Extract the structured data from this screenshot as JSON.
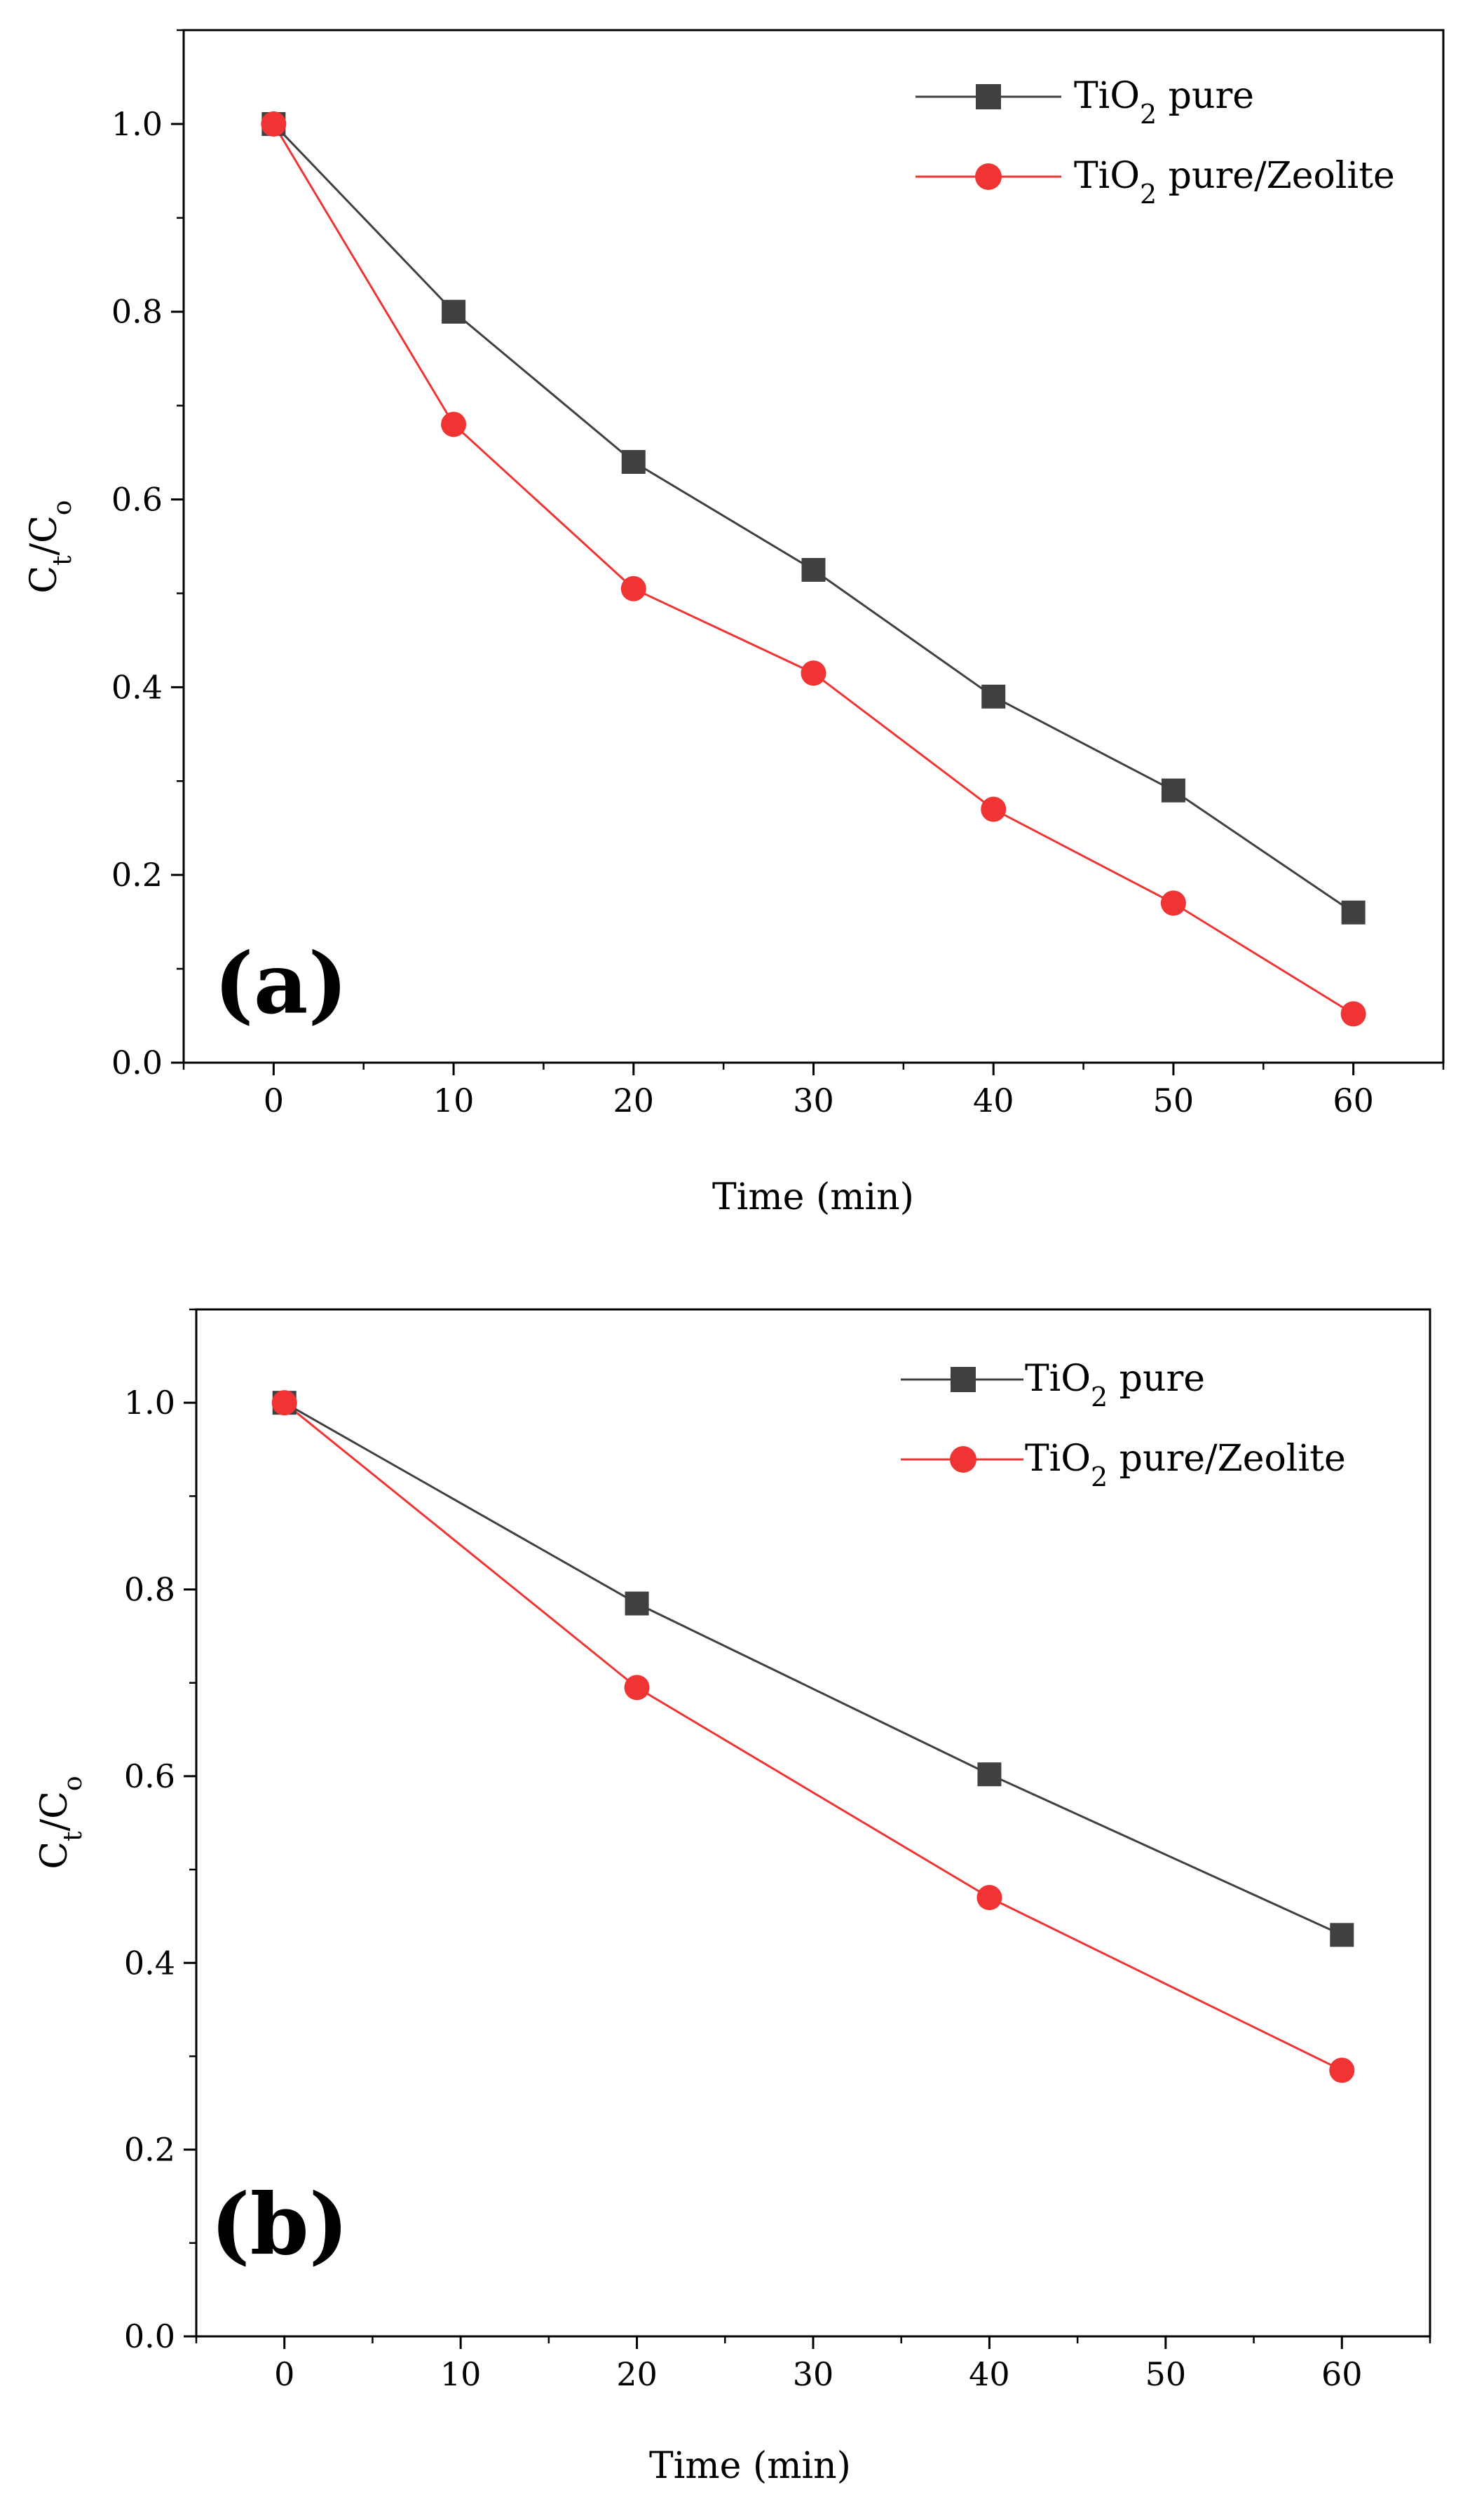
{
  "colors": {
    "series_black": "#404040",
    "series_red": "#f03434",
    "axis": "#000000"
  },
  "chart_data": [
    {
      "type": "line",
      "panel_label": "(a)",
      "xlabel": "Time (min)",
      "ylabel": {
        "main": "C",
        "sub1": "t",
        "slash": "/C",
        "sub2": "o"
      },
      "xlim": [
        -5,
        65
      ],
      "ylim": [
        0.0,
        1.1
      ],
      "xticks": [
        0,
        10,
        20,
        30,
        40,
        50,
        60
      ],
      "xtick_labels": [
        "0",
        "10",
        "20",
        "30",
        "40",
        "50",
        "60"
      ],
      "yticks": [
        0.0,
        0.2,
        0.4,
        0.6,
        0.8,
        1.0
      ],
      "ytick_labels": [
        "0.0",
        "0.2",
        "0.4",
        "0.6",
        "0.8",
        "1.0"
      ],
      "legend_position": "top-right",
      "series": [
        {
          "name": "TiO2 pure",
          "label_parts": {
            "pre": "TiO",
            "sub": "2",
            "post": " pure"
          },
          "marker": "square",
          "color": "#404040",
          "x": [
            0,
            10,
            20,
            30,
            40,
            50,
            60
          ],
          "values": [
            1.0,
            0.8,
            0.64,
            0.525,
            0.39,
            0.29,
            0.16
          ]
        },
        {
          "name": "TiO2 pure/Zeolite",
          "label_parts": {
            "pre": "TiO",
            "sub": "2",
            "post": " pure/Zeolite"
          },
          "marker": "circle",
          "color": "#f03434",
          "x": [
            0,
            10,
            20,
            30,
            40,
            50,
            60
          ],
          "values": [
            1.0,
            0.68,
            0.505,
            0.415,
            0.27,
            0.17,
            0.052
          ]
        }
      ]
    },
    {
      "type": "line",
      "panel_label": "(b)",
      "xlabel": "Time (min)",
      "ylabel": {
        "main": "C",
        "sub1": "t",
        "slash": "/C",
        "sub2": "o"
      },
      "xlim": [
        -5,
        65
      ],
      "ylim": [
        0.0,
        1.1
      ],
      "xticks": [
        0,
        10,
        20,
        30,
        40,
        50,
        60
      ],
      "xtick_labels": [
        "0",
        "10",
        "20",
        "30",
        "40",
        "50",
        "60"
      ],
      "yticks": [
        0.0,
        0.2,
        0.4,
        0.6,
        0.8,
        1.0
      ],
      "ytick_labels": [
        "0.0",
        "0.2",
        "0.4",
        "0.6",
        "0.8",
        "1.0"
      ],
      "legend_position": "top-right",
      "series": [
        {
          "name": "TiO2 pure",
          "label_parts": {
            "pre": "TiO",
            "sub": "2",
            "post": " pure"
          },
          "marker": "square",
          "color": "#404040",
          "x": [
            0,
            20,
            40,
            60
          ],
          "values": [
            1.0,
            0.785,
            0.602,
            0.43
          ]
        },
        {
          "name": "TiO2 pure/Zeolite",
          "label_parts": {
            "pre": "TiO",
            "sub": "2",
            "post": " pure/Zeolite"
          },
          "marker": "circle",
          "color": "#f03434",
          "x": [
            0,
            20,
            40,
            60
          ],
          "values": [
            1.0,
            0.695,
            0.47,
            0.285
          ]
        }
      ]
    }
  ]
}
